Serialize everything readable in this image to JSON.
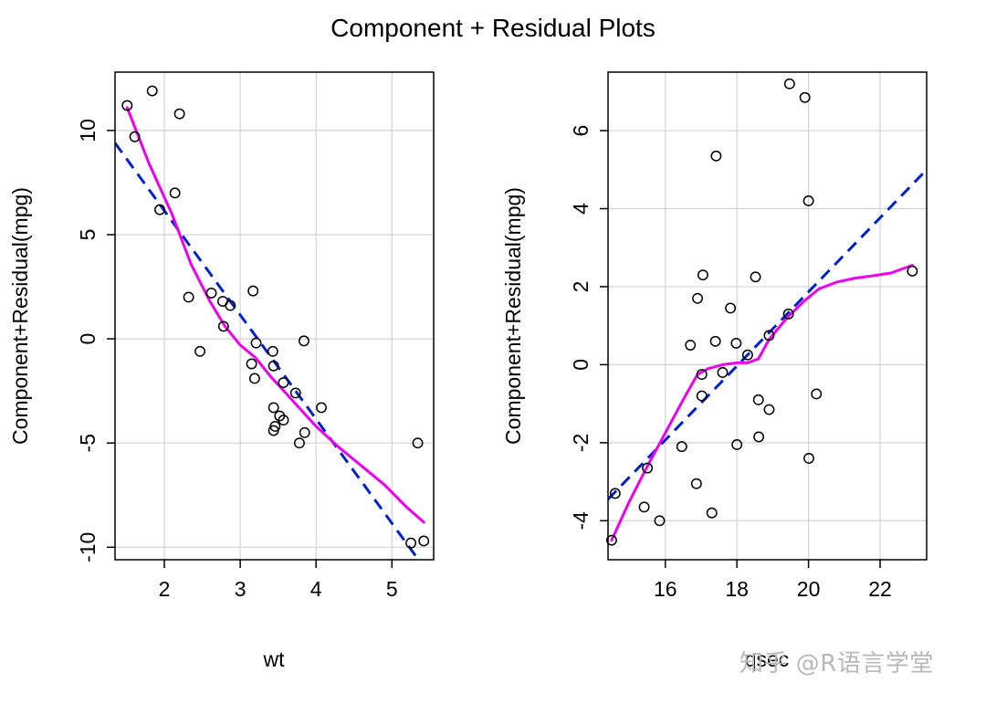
{
  "title": "Component + Residual Plots",
  "watermark": "知乎 @R语言学堂",
  "colors": {
    "fit": "#0022cc",
    "smooth": "#ee00ee",
    "grid": "#d3d3d3",
    "points": "#000000"
  },
  "chart_data": [
    {
      "type": "scatter",
      "xlabel": "wt",
      "ylabel": "Component+Residual(mpg)",
      "xlim": [
        1.35,
        5.55
      ],
      "ylim": [
        -10.6,
        12.8
      ],
      "xticks": [
        2,
        3,
        4,
        5
      ],
      "yticks": [
        -10,
        -5,
        0,
        5,
        10
      ],
      "grid": true,
      "points": [
        {
          "x": 1.51,
          "y": 11.2
        },
        {
          "x": 1.61,
          "y": 9.7
        },
        {
          "x": 1.84,
          "y": 11.9
        },
        {
          "x": 1.94,
          "y": 6.2
        },
        {
          "x": 2.14,
          "y": 7.0
        },
        {
          "x": 2.2,
          "y": 10.8
        },
        {
          "x": 2.32,
          "y": 2.0
        },
        {
          "x": 2.47,
          "y": -0.6
        },
        {
          "x": 2.62,
          "y": 2.2
        },
        {
          "x": 2.77,
          "y": 1.8
        },
        {
          "x": 2.78,
          "y": 0.6
        },
        {
          "x": 2.87,
          "y": 1.6
        },
        {
          "x": 3.15,
          "y": -1.2
        },
        {
          "x": 3.17,
          "y": 2.3
        },
        {
          "x": 3.19,
          "y": -1.9
        },
        {
          "x": 3.21,
          "y": -0.2
        },
        {
          "x": 3.43,
          "y": -0.6
        },
        {
          "x": 3.44,
          "y": -1.3
        },
        {
          "x": 3.44,
          "y": -3.3
        },
        {
          "x": 3.44,
          "y": -4.4
        },
        {
          "x": 3.46,
          "y": -4.2
        },
        {
          "x": 3.52,
          "y": -3.7
        },
        {
          "x": 3.57,
          "y": -2.1
        },
        {
          "x": 3.57,
          "y": -3.9
        },
        {
          "x": 3.73,
          "y": -2.6
        },
        {
          "x": 3.78,
          "y": -5.0
        },
        {
          "x": 3.84,
          "y": -0.1
        },
        {
          "x": 3.85,
          "y": -4.5
        },
        {
          "x": 4.07,
          "y": -3.3
        },
        {
          "x": 5.25,
          "y": -9.8
        },
        {
          "x": 5.34,
          "y": -5.0
        },
        {
          "x": 5.42,
          "y": -9.7
        }
      ],
      "fit_line": [
        {
          "x": 1.35,
          "y": 9.4
        },
        {
          "x": 5.35,
          "y": -10.6
        }
      ],
      "smooth": [
        {
          "x": 1.51,
          "y": 11.1
        },
        {
          "x": 1.8,
          "y": 8.4
        },
        {
          "x": 2.1,
          "y": 6.0
        },
        {
          "x": 2.35,
          "y": 3.6
        },
        {
          "x": 2.6,
          "y": 1.8
        },
        {
          "x": 2.8,
          "y": 0.6
        },
        {
          "x": 3.0,
          "y": -0.3
        },
        {
          "x": 3.2,
          "y": -0.9
        },
        {
          "x": 3.4,
          "y": -1.8
        },
        {
          "x": 3.6,
          "y": -2.6
        },
        {
          "x": 3.8,
          "y": -3.4
        },
        {
          "x": 4.0,
          "y": -4.2
        },
        {
          "x": 4.3,
          "y": -5.2
        },
        {
          "x": 4.6,
          "y": -6.1
        },
        {
          "x": 4.9,
          "y": -7.0
        },
        {
          "x": 5.2,
          "y": -8.1
        },
        {
          "x": 5.42,
          "y": -8.8
        }
      ]
    },
    {
      "type": "scatter",
      "xlabel": "qsec",
      "ylabel": "Component+Residual(mpg)",
      "xlim": [
        14.4,
        23.3
      ],
      "ylim": [
        -5.0,
        7.5
      ],
      "xticks": [
        16,
        18,
        20,
        22
      ],
      "yticks": [
        -4,
        -2,
        0,
        2,
        4,
        6
      ],
      "grid": true,
      "points": [
        {
          "x": 14.5,
          "y": -4.5
        },
        {
          "x": 14.6,
          "y": -3.3
        },
        {
          "x": 15.41,
          "y": -3.65
        },
        {
          "x": 15.5,
          "y": -2.65
        },
        {
          "x": 15.84,
          "y": -4.0
        },
        {
          "x": 16.46,
          "y": -2.1
        },
        {
          "x": 16.7,
          "y": 0.5
        },
        {
          "x": 16.87,
          "y": -3.05
        },
        {
          "x": 16.9,
          "y": 1.7
        },
        {
          "x": 17.02,
          "y": -0.25
        },
        {
          "x": 17.02,
          "y": -0.8
        },
        {
          "x": 17.05,
          "y": 2.3
        },
        {
          "x": 17.3,
          "y": -3.8
        },
        {
          "x": 17.4,
          "y": 0.6
        },
        {
          "x": 17.42,
          "y": 5.35
        },
        {
          "x": 17.6,
          "y": -0.2
        },
        {
          "x": 17.82,
          "y": 1.45
        },
        {
          "x": 17.98,
          "y": 0.55
        },
        {
          "x": 18.0,
          "y": -2.05
        },
        {
          "x": 18.3,
          "y": 0.25
        },
        {
          "x": 18.52,
          "y": 2.25
        },
        {
          "x": 18.6,
          "y": -0.9
        },
        {
          "x": 18.61,
          "y": -1.85
        },
        {
          "x": 18.9,
          "y": 0.75
        },
        {
          "x": 18.9,
          "y": -1.15
        },
        {
          "x": 19.44,
          "y": 1.3
        },
        {
          "x": 19.47,
          "y": 7.2
        },
        {
          "x": 19.9,
          "y": 6.85
        },
        {
          "x": 20.0,
          "y": 4.2
        },
        {
          "x": 20.01,
          "y": -2.4
        },
        {
          "x": 20.22,
          "y": -0.75
        },
        {
          "x": 22.9,
          "y": 2.4
        }
      ],
      "fit_line": [
        {
          "x": 14.4,
          "y": -3.45
        },
        {
          "x": 23.3,
          "y": 5.0
        }
      ],
      "smooth": [
        {
          "x": 14.5,
          "y": -4.5
        },
        {
          "x": 15.0,
          "y": -3.5
        },
        {
          "x": 15.5,
          "y": -2.6
        },
        {
          "x": 16.0,
          "y": -1.75
        },
        {
          "x": 16.5,
          "y": -0.9
        },
        {
          "x": 16.9,
          "y": -0.25
        },
        {
          "x": 17.2,
          "y": -0.1
        },
        {
          "x": 17.6,
          "y": 0.0
        },
        {
          "x": 18.0,
          "y": 0.05
        },
        {
          "x": 18.3,
          "y": 0.05
        },
        {
          "x": 18.6,
          "y": 0.15
        },
        {
          "x": 18.9,
          "y": 0.65
        },
        {
          "x": 19.4,
          "y": 1.2
        },
        {
          "x": 19.9,
          "y": 1.65
        },
        {
          "x": 20.3,
          "y": 1.95
        },
        {
          "x": 20.8,
          "y": 2.12
        },
        {
          "x": 21.3,
          "y": 2.22
        },
        {
          "x": 21.8,
          "y": 2.28
        },
        {
          "x": 22.3,
          "y": 2.35
        },
        {
          "x": 22.9,
          "y": 2.55
        }
      ]
    }
  ]
}
